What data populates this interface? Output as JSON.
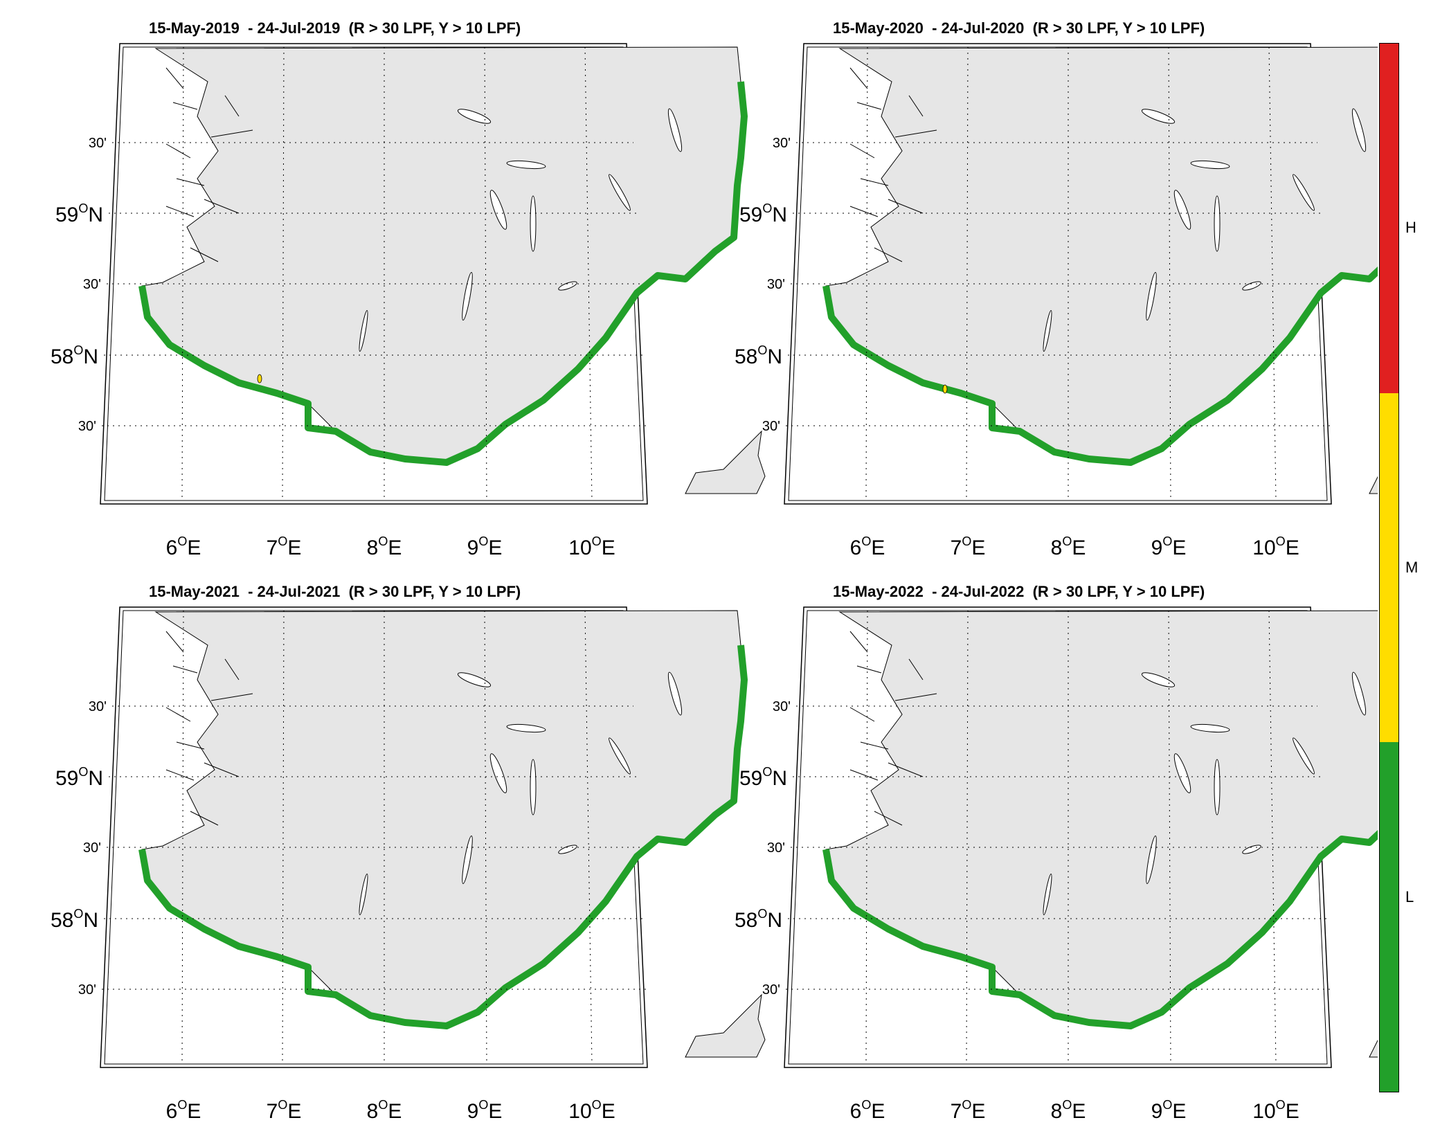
{
  "panels": [
    {
      "title": "15-May-2019  - 24-Jul-2019  (R > 30 LPF, Y > 10 LPF)",
      "yellow_spot": true
    },
    {
      "title": "15-May-2020  - 24-Jul-2020  (R > 30 LPF, Y > 10 LPF)",
      "yellow_spot": true
    },
    {
      "title": "15-May-2021  - 24-Jul-2021  (R > 30 LPF, Y > 10 LPF)",
      "yellow_spot": false
    },
    {
      "title": "15-May-2022  - 24-Jul-2022  (R > 30 LPF, Y > 10 LPF)",
      "yellow_spot": false
    }
  ],
  "axes": {
    "lat_labels": [
      {
        "text": "30'",
        "type": "minor"
      },
      {
        "text": "59",
        "type": "major"
      },
      {
        "text": "30'",
        "type": "minor"
      },
      {
        "text": "58",
        "type": "major"
      },
      {
        "text": "30'",
        "type": "minor"
      }
    ],
    "lon_labels": [
      "6",
      "7",
      "8",
      "9",
      "10"
    ],
    "deg_symbol": "O",
    "north": "N",
    "east": "E"
  },
  "colorbar": {
    "levels": [
      {
        "label": "H",
        "color": "#e02020"
      },
      {
        "label": "M",
        "color": "#ffdd00"
      },
      {
        "label": "L",
        "color": "#22a02a"
      }
    ]
  },
  "colors": {
    "land": "#e6e6e6",
    "coast_risk_low": "#22a02a",
    "yellow": "#ffdd00"
  }
}
